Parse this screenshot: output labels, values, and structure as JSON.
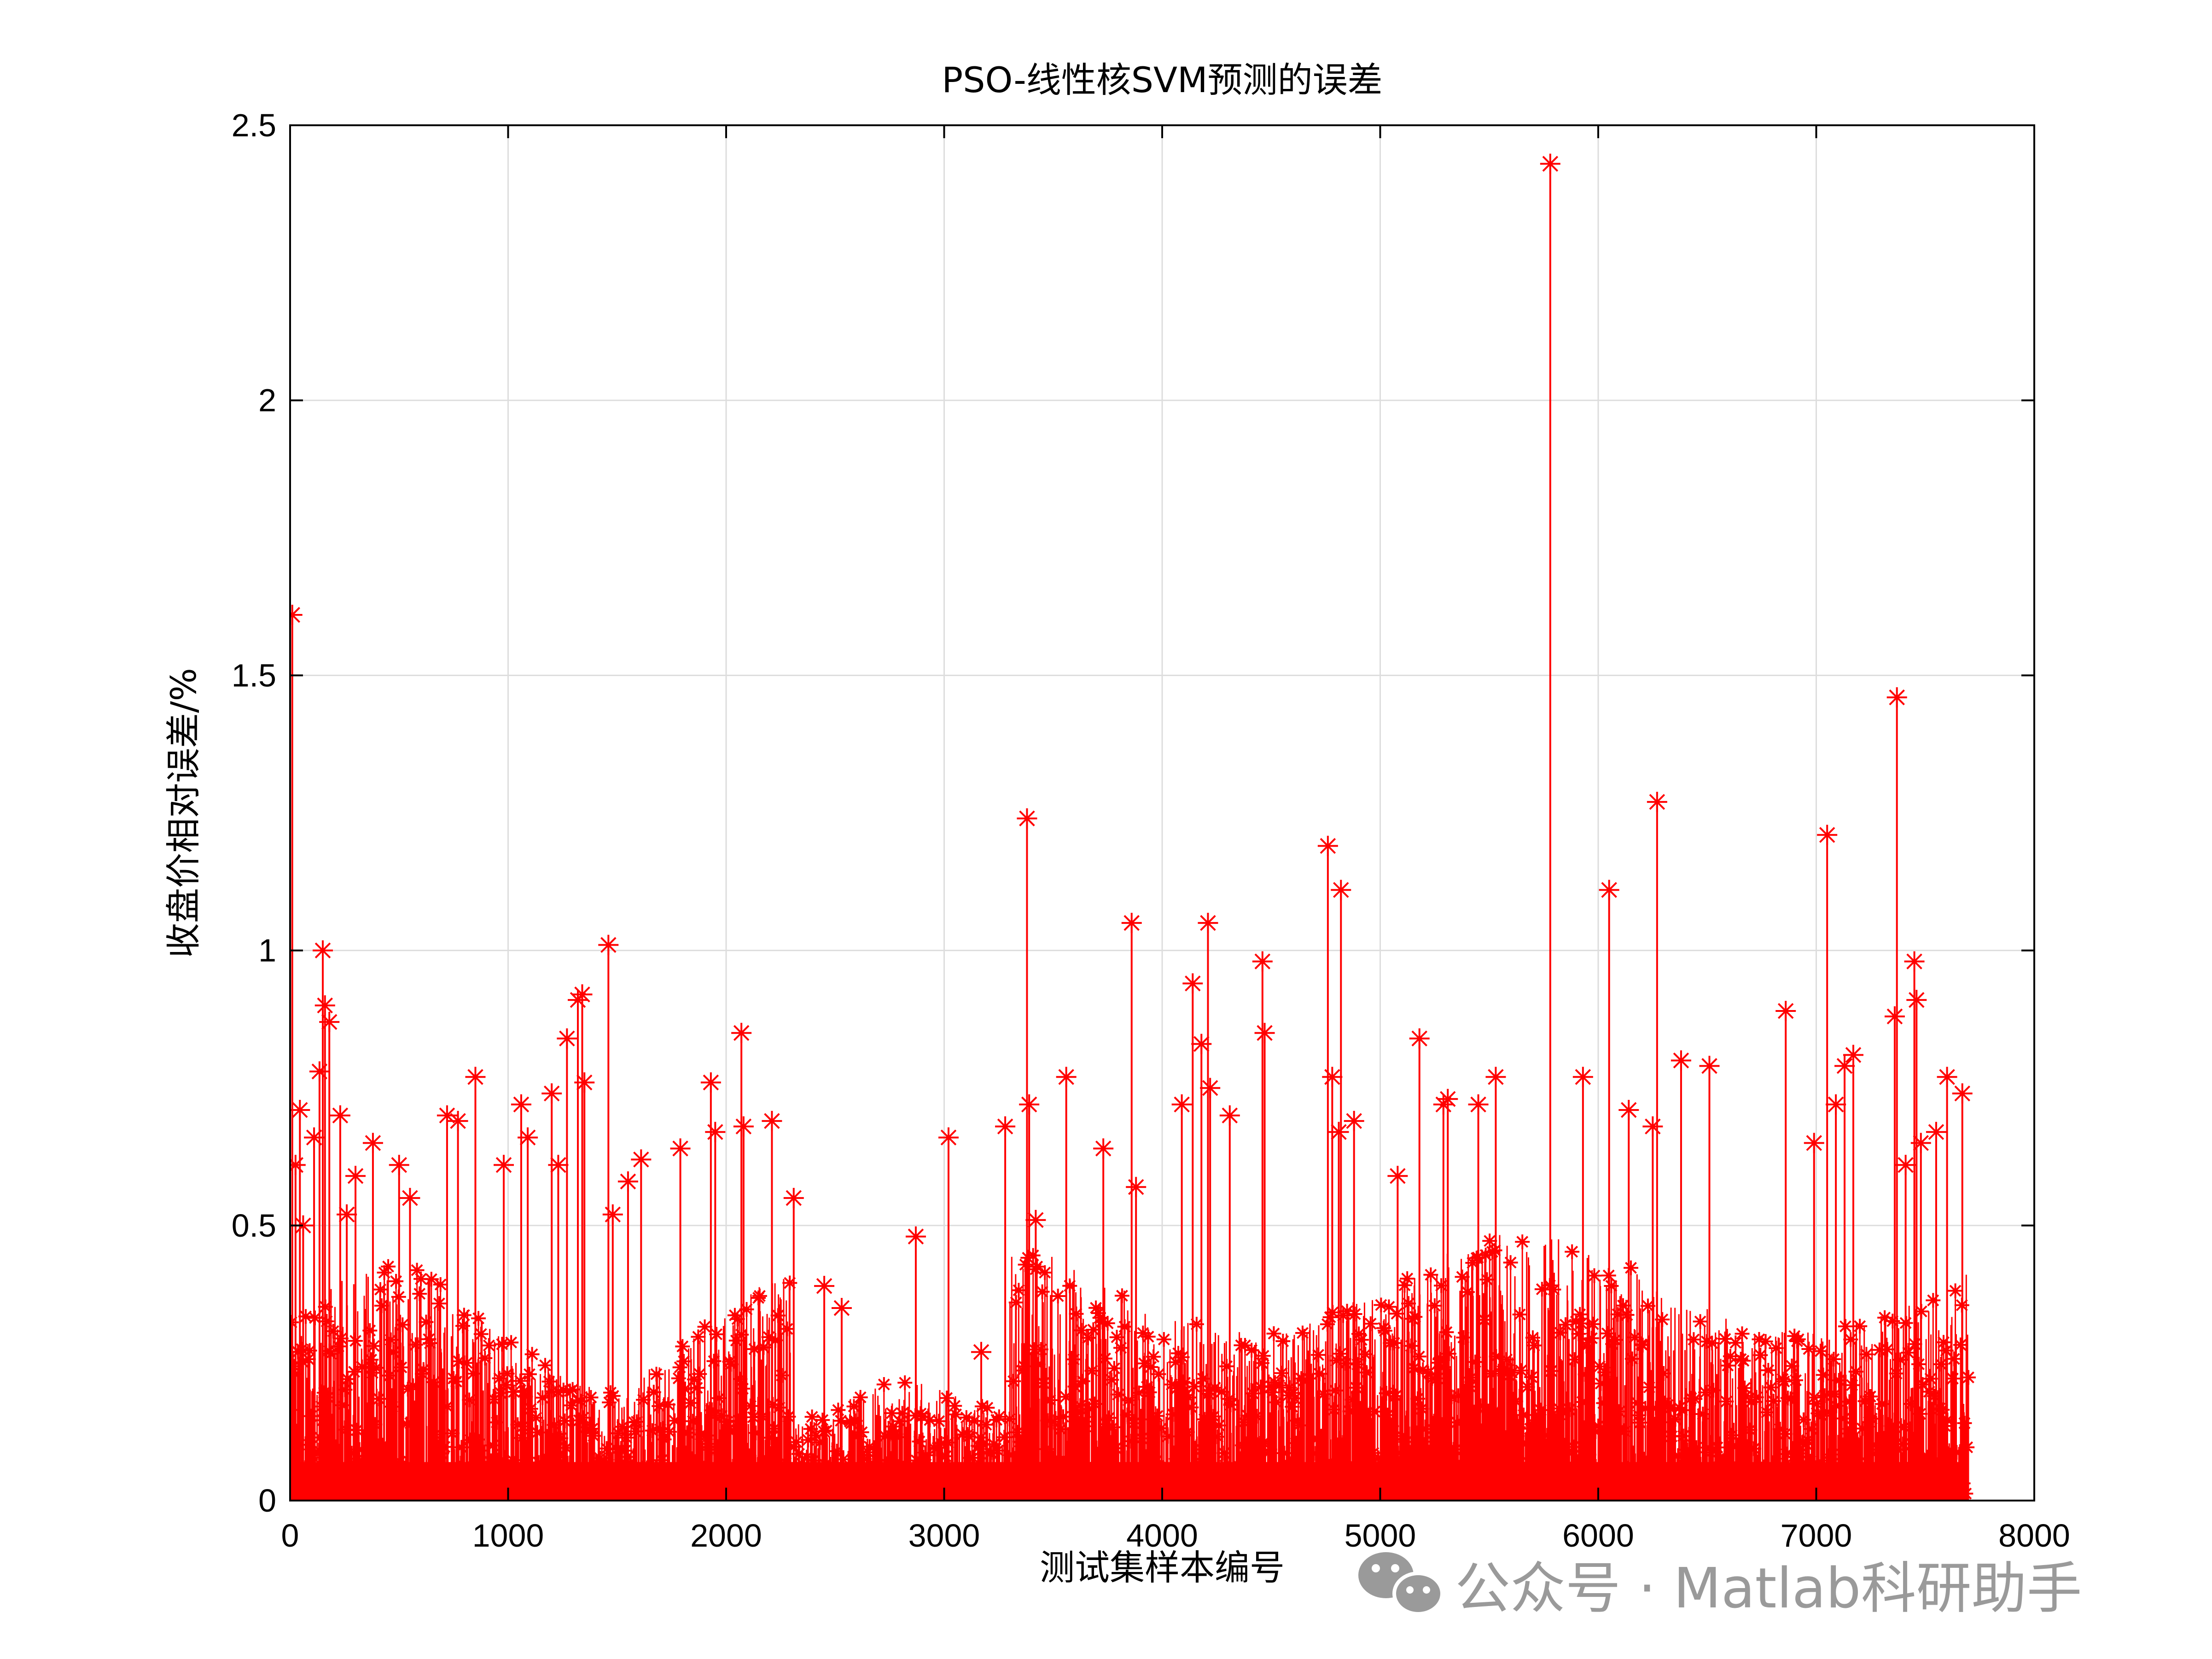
{
  "chart_data": {
    "type": "scatter",
    "title": "PSO-线性核SVM预测的误差",
    "xlabel": "测试集样本编号",
    "ylabel": "收盘价相对误差/%",
    "xlim": [
      0,
      8000
    ],
    "ylim": [
      0,
      2.5
    ],
    "xticks": [
      "0",
      "1000",
      "2000",
      "3000",
      "4000",
      "5000",
      "6000",
      "7000",
      "8000"
    ],
    "yticks": [
      "0",
      "0.5",
      "1",
      "1.5",
      "2",
      "2.5"
    ],
    "grid": true,
    "marker": "asterisk",
    "stem": true,
    "color": "#ff0000",
    "n_samples": 7700,
    "series": [
      {
        "x": [
          10,
          25,
          45,
          60,
          110,
          135,
          150,
          160,
          180,
          230,
          260,
          300,
          380,
          500,
          550,
          720,
          770,
          850,
          980,
          1060,
          1090,
          1200,
          1230,
          1270,
          1320,
          1340,
          1350,
          1460,
          1480,
          1550,
          1610,
          1790,
          1930,
          1950,
          2070,
          2080,
          2210,
          2310,
          2450,
          2530,
          2870,
          3020,
          3170,
          3280,
          3380,
          3390,
          3420,
          3560,
          3730,
          3860,
          3880,
          4090,
          4140,
          4180,
          4210,
          4220,
          4310,
          4460,
          4470,
          4760,
          4780,
          4810,
          4820,
          4880,
          5080,
          5180,
          5290,
          5310,
          5450,
          5530,
          5780,
          5930,
          6050,
          6140,
          6250,
          6270,
          6380,
          6510,
          6860,
          6990,
          7050,
          7090,
          7130,
          7170,
          7360,
          7370,
          7410,
          7450,
          7460,
          7480,
          7550,
          7600,
          7670
        ],
        "values": [
          1.61,
          0.61,
          0.71,
          0.5,
          0.66,
          0.78,
          1.0,
          0.9,
          0.87,
          0.7,
          0.52,
          0.59,
          0.65,
          0.61,
          0.55,
          0.7,
          0.69,
          0.77,
          0.61,
          0.72,
          0.66,
          0.74,
          0.61,
          0.84,
          0.91,
          0.92,
          0.76,
          1.01,
          0.52,
          0.58,
          0.62,
          0.64,
          0.76,
          0.67,
          0.85,
          0.68,
          0.69,
          0.55,
          0.39,
          0.35,
          0.48,
          0.66,
          0.27,
          0.68,
          1.24,
          0.72,
          0.51,
          0.77,
          0.64,
          1.05,
          0.57,
          0.72,
          0.94,
          0.83,
          1.05,
          0.75,
          0.7,
          0.98,
          0.85,
          1.19,
          0.77,
          0.67,
          1.11,
          0.69,
          0.59,
          0.84,
          0.72,
          0.73,
          0.72,
          0.77,
          2.43,
          0.77,
          1.11,
          0.71,
          0.68,
          1.27,
          0.8,
          0.79,
          0.89,
          0.65,
          1.21,
          0.72,
          0.79,
          0.81,
          0.88,
          1.46,
          0.61,
          0.98,
          0.91,
          0.65,
          0.67,
          0.77,
          0.74
        ]
      }
    ],
    "noise_floor_note": ""
  },
  "watermark": {
    "icon": "wechat-icon",
    "text": "公众号 · Matlab科研助手"
  }
}
